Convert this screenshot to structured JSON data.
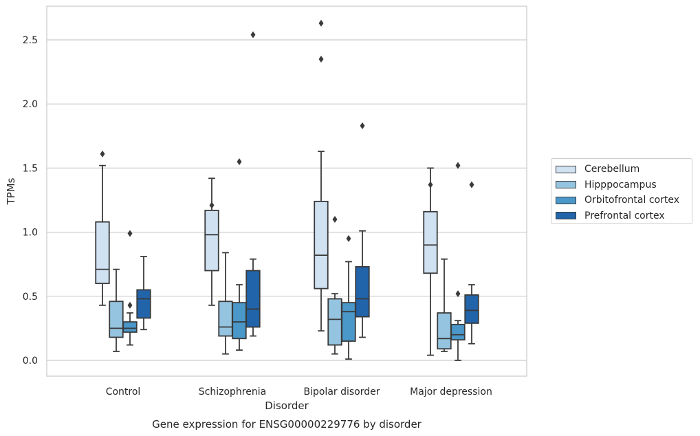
{
  "chart_data": {
    "type": "box",
    "title": "Gene expression for ENSG00000229776 by disorder",
    "xlabel": "Disorder",
    "ylabel": "TPMs",
    "categories": [
      "Control",
      "Schizophrenia",
      "Bipolar disorder",
      "Major depression"
    ],
    "y_ticks": [
      "0.0",
      "0.5",
      "1.0",
      "1.5",
      "2.0",
      "2.5"
    ],
    "ylim": [
      -0.12,
      2.76
    ],
    "grid": "horizontal",
    "legend_position": "right",
    "series": [
      {
        "name": "Cerebellum",
        "color": "#d0e1f2",
        "boxes": [
          {
            "whisker_low": 0.43,
            "q1": 0.6,
            "median": 0.71,
            "q3": 1.08,
            "whisker_high": 1.52,
            "outliers": [
              1.61
            ]
          },
          {
            "whisker_low": 0.43,
            "q1": 0.7,
            "median": 0.98,
            "q3": 1.17,
            "whisker_high": 1.42,
            "outliers": [
              1.21
            ]
          },
          {
            "whisker_low": 0.23,
            "q1": 0.56,
            "median": 0.82,
            "q3": 1.24,
            "whisker_high": 1.63,
            "outliers": [
              2.35,
              2.63
            ]
          },
          {
            "whisker_low": 0.04,
            "q1": 0.68,
            "median": 0.9,
            "q3": 1.16,
            "whisker_high": 1.5,
            "outliers": [
              1.37
            ]
          }
        ]
      },
      {
        "name": "Hipppocampus",
        "color": "#94c4df",
        "boxes": [
          {
            "whisker_low": 0.07,
            "q1": 0.18,
            "median": 0.25,
            "q3": 0.46,
            "whisker_high": 0.71,
            "outliers": []
          },
          {
            "whisker_low": 0.05,
            "q1": 0.19,
            "median": 0.26,
            "q3": 0.46,
            "whisker_high": 0.84,
            "outliers": []
          },
          {
            "whisker_low": 0.05,
            "q1": 0.12,
            "median": 0.32,
            "q3": 0.48,
            "whisker_high": 0.52,
            "outliers": [
              1.1
            ]
          },
          {
            "whisker_low": 0.07,
            "q1": 0.09,
            "median": 0.17,
            "q3": 0.37,
            "whisker_high": 0.79,
            "outliers": []
          }
        ]
      },
      {
        "name": "Orbitofrontal cortex",
        "color": "#4a98c9",
        "boxes": [
          {
            "whisker_low": 0.12,
            "q1": 0.22,
            "median": 0.25,
            "q3": 0.3,
            "whisker_high": 0.37,
            "outliers": [
              0.43,
              0.99
            ]
          },
          {
            "whisker_low": 0.08,
            "q1": 0.17,
            "median": 0.3,
            "q3": 0.45,
            "whisker_high": 0.59,
            "outliers": [
              1.55
            ]
          },
          {
            "whisker_low": 0.01,
            "q1": 0.15,
            "median": 0.38,
            "q3": 0.45,
            "whisker_high": 0.77,
            "outliers": [
              0.95
            ]
          },
          {
            "whisker_low": 0.0,
            "q1": 0.16,
            "median": 0.2,
            "q3": 0.28,
            "whisker_high": 0.31,
            "outliers": [
              0.52,
              1.52
            ]
          }
        ]
      },
      {
        "name": "Prefrontal cortex",
        "color": "#2264aa",
        "boxes": [
          {
            "whisker_low": 0.24,
            "q1": 0.33,
            "median": 0.48,
            "q3": 0.55,
            "whisker_high": 0.81,
            "outliers": []
          },
          {
            "whisker_low": 0.19,
            "q1": 0.26,
            "median": 0.4,
            "q3": 0.7,
            "whisker_high": 0.79,
            "outliers": [
              2.54
            ]
          },
          {
            "whisker_low": 0.18,
            "q1": 0.34,
            "median": 0.48,
            "q3": 0.73,
            "whisker_high": 1.01,
            "outliers": [
              1.83
            ]
          },
          {
            "whisker_low": 0.13,
            "q1": 0.29,
            "median": 0.39,
            "q3": 0.51,
            "whisker_high": 0.59,
            "outliers": [
              1.37
            ]
          }
        ]
      }
    ]
  }
}
